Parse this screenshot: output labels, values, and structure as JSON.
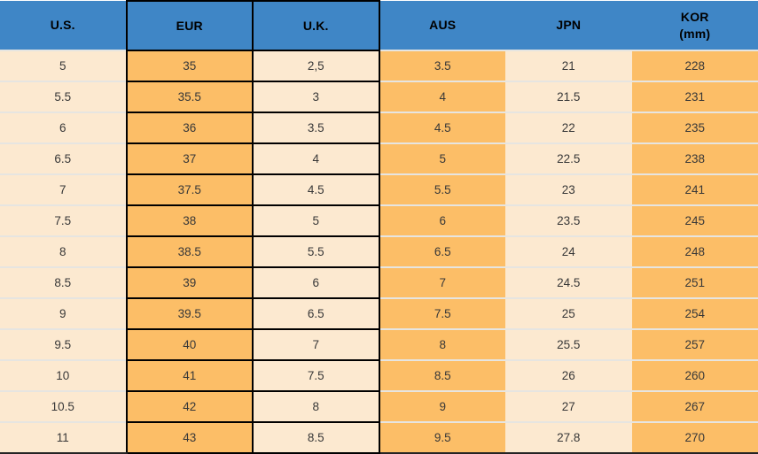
{
  "colors": {
    "header_blue": "#3F86C6",
    "cell_orange": "#FCBE67",
    "cell_cream": "#FCE9D0",
    "box_border_black": "#000000",
    "row_separator": "#E6E5E1",
    "bottom_border": "#242424",
    "body_text": "#383838",
    "header_text": "#000000"
  },
  "table": {
    "columns": [
      {
        "key": "us",
        "label": "U.S.",
        "fill": "cream",
        "boxed": false
      },
      {
        "key": "eur",
        "label": "EUR",
        "fill": "orange",
        "boxed": true
      },
      {
        "key": "uk",
        "label": "U.K.",
        "fill": "cream",
        "boxed": true
      },
      {
        "key": "aus",
        "label": "AUS",
        "fill": "orange",
        "boxed": false
      },
      {
        "key": "jpn",
        "label": "JPN",
        "fill": "cream",
        "boxed": false
      },
      {
        "key": "kor",
        "label": "KOR",
        "sublabel": "(mm)",
        "fill": "orange",
        "boxed": false
      }
    ],
    "rows": [
      [
        "5",
        "35",
        "2,5",
        "3.5",
        "21",
        "228"
      ],
      [
        "5.5",
        "35.5",
        "3",
        "4",
        "21.5",
        "231"
      ],
      [
        "6",
        "36",
        "3.5",
        "4.5",
        "22",
        "235"
      ],
      [
        "6.5",
        "37",
        "4",
        "5",
        "22.5",
        "238"
      ],
      [
        "7",
        "37.5",
        "4.5",
        "5.5",
        "23",
        "241"
      ],
      [
        "7.5",
        "38",
        "5",
        "6",
        "23.5",
        "245"
      ],
      [
        "8",
        "38.5",
        "5.5",
        "6.5",
        "24",
        "248"
      ],
      [
        "8.5",
        "39",
        "6",
        "7",
        "24.5",
        "251"
      ],
      [
        "9",
        "39.5",
        "6.5",
        "7.5",
        "25",
        "254"
      ],
      [
        "9.5",
        "40",
        "7",
        "8",
        "25.5",
        "257"
      ],
      [
        "10",
        "41",
        "7.5",
        "8.5",
        "26",
        "260"
      ],
      [
        "10.5",
        "42",
        "8",
        "9",
        "27",
        "267"
      ],
      [
        "11",
        "43",
        "8.5",
        "9.5",
        "27.8",
        "270"
      ]
    ]
  },
  "chart_data": {
    "type": "table",
    "columns": [
      "U.S.",
      "EUR",
      "U.K.",
      "AUS",
      "JPN",
      "KOR (mm)"
    ],
    "rows": [
      [
        "5",
        "35",
        "2,5",
        "3.5",
        "21",
        "228"
      ],
      [
        "5.5",
        "35.5",
        "3",
        "4",
        "21.5",
        "231"
      ],
      [
        "6",
        "36",
        "3.5",
        "4.5",
        "22",
        "235"
      ],
      [
        "6.5",
        "37",
        "4",
        "5",
        "22.5",
        "238"
      ],
      [
        "7",
        "37.5",
        "4.5",
        "5.5",
        "23",
        "241"
      ],
      [
        "7.5",
        "38",
        "5",
        "6",
        "23.5",
        "245"
      ],
      [
        "8",
        "38.5",
        "5.5",
        "6.5",
        "24",
        "248"
      ],
      [
        "8.5",
        "39",
        "6",
        "7",
        "24.5",
        "251"
      ],
      [
        "9",
        "39.5",
        "6.5",
        "7.5",
        "25",
        "254"
      ],
      [
        "9.5",
        "40",
        "7",
        "8",
        "25.5",
        "257"
      ],
      [
        "10",
        "41",
        "7.5",
        "8.5",
        "26",
        "260"
      ],
      [
        "10.5",
        "42",
        "8",
        "9",
        "27",
        "267"
      ],
      [
        "11",
        "43",
        "8.5",
        "9.5",
        "27.8",
        "270"
      ]
    ]
  }
}
